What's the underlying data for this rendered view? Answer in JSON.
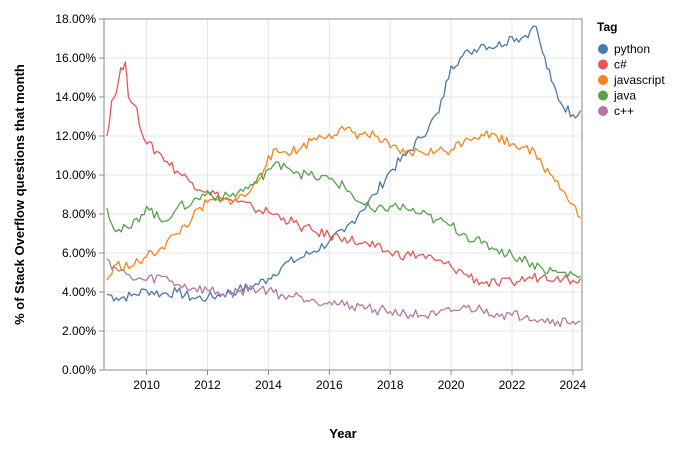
{
  "chart_data": {
    "type": "line",
    "xlabel": "Year",
    "ylabel": "% of Stack Overflow questions that month",
    "xlim": [
      2008.6,
      2024.3
    ],
    "ylim": [
      0,
      18
    ],
    "x_ticks": [
      "2010",
      "2012",
      "2014",
      "2016",
      "2018",
      "2020",
      "2022",
      "2024"
    ],
    "y_ticks": [
      "0.00%",
      "2.00%",
      "4.00%",
      "6.00%",
      "8.00%",
      "10.00%",
      "12.00%",
      "14.00%",
      "16.00%",
      "18.00%"
    ],
    "grid": true,
    "legend_title": "Tag",
    "legend_position": "top-right",
    "series": [
      {
        "name": "python",
        "color": "#4c78a8",
        "x": [
          2008.7,
          2009,
          2009.5,
          2010,
          2010.5,
          2011,
          2011.5,
          2012,
          2012.5,
          2013,
          2013.5,
          2014,
          2014.5,
          2015,
          2015.5,
          2016,
          2016.5,
          2017,
          2017.5,
          2018,
          2018.5,
          2019,
          2019.3,
          2019.6,
          2020,
          2020.3,
          2020.6,
          2021,
          2021.5,
          2022,
          2022.3,
          2022.6,
          2022.8,
          2023,
          2023.3,
          2023.6,
          2024,
          2024.25
        ],
        "y": [
          3.9,
          3.7,
          3.8,
          4.1,
          3.9,
          4.0,
          3.7,
          3.7,
          3.9,
          4.1,
          4.3,
          4.7,
          5.4,
          5.7,
          6.1,
          6.6,
          7.1,
          8.1,
          9.0,
          10.2,
          11.0,
          11.9,
          12.6,
          13.2,
          15.6,
          16.0,
          16.3,
          16.7,
          16.6,
          17.1,
          17.0,
          17.4,
          17.6,
          16.3,
          14.8,
          13.7,
          13.1,
          13.3
        ]
      },
      {
        "name": "c#",
        "color": "#e45756",
        "x": [
          2008.7,
          2008.85,
          2009,
          2009.15,
          2009.3,
          2009.4,
          2009.6,
          2010,
          2010.5,
          2011,
          2011.5,
          2012,
          2012.5,
          2013,
          2013.5,
          2014,
          2014.5,
          2015,
          2015.5,
          2016,
          2016.5,
          2017,
          2017.5,
          2018,
          2018.5,
          2019,
          2019.5,
          2020,
          2020.5,
          2021,
          2021.5,
          2022,
          2022.5,
          2023,
          2023.5,
          2024,
          2024.25
        ],
        "y": [
          12.0,
          13.8,
          14.2,
          15.5,
          15.8,
          14.0,
          13.6,
          11.6,
          11.0,
          10.2,
          9.6,
          9.2,
          8.8,
          8.6,
          8.3,
          8.1,
          7.8,
          7.4,
          7.1,
          6.9,
          6.8,
          6.5,
          6.3,
          6.0,
          5.9,
          5.9,
          5.6,
          5.3,
          4.9,
          4.5,
          4.4,
          4.5,
          4.7,
          4.8,
          4.8,
          4.6,
          4.7
        ]
      },
      {
        "name": "javascript",
        "color": "#f58518",
        "x": [
          2008.7,
          2009,
          2009.5,
          2010,
          2010.5,
          2011,
          2011.5,
          2012,
          2012.5,
          2013,
          2013.3,
          2013.7,
          2014,
          2014.5,
          2015,
          2015.5,
          2016,
          2016.5,
          2017,
          2017.5,
          2018,
          2018.5,
          2019,
          2019.5,
          2020,
          2020.5,
          2021,
          2021.5,
          2022,
          2022.5,
          2023,
          2023.5,
          2024,
          2024.25
        ],
        "y": [
          4.6,
          5.4,
          5.3,
          5.8,
          6.3,
          7.0,
          7.8,
          8.6,
          8.7,
          8.8,
          9.0,
          9.8,
          11.0,
          11.2,
          11.3,
          11.9,
          12.1,
          12.3,
          12.1,
          12.0,
          11.4,
          11.1,
          11.2,
          11.2,
          11.3,
          11.9,
          12.1,
          12.0,
          11.6,
          11.5,
          10.5,
          9.7,
          8.5,
          7.8
        ]
      },
      {
        "name": "java",
        "color": "#54a24b",
        "x": [
          2008.7,
          2009,
          2009.5,
          2010,
          2010.5,
          2011,
          2011.5,
          2012,
          2012.5,
          2013,
          2013.5,
          2014,
          2014.5,
          2015,
          2015.5,
          2016,
          2016.5,
          2017,
          2017.5,
          2018,
          2018.5,
          2019,
          2019.5,
          2020,
          2020.5,
          2021,
          2021.5,
          2022,
          2022.5,
          2023,
          2023.5,
          2024,
          2024.25
        ],
        "y": [
          8.3,
          7.1,
          7.3,
          8.4,
          7.6,
          8.3,
          8.6,
          9.1,
          8.8,
          9.1,
          9.5,
          10.3,
          10.6,
          10.1,
          9.9,
          9.8,
          9.4,
          8.6,
          8.1,
          8.4,
          8.3,
          8.0,
          7.7,
          7.4,
          6.9,
          6.5,
          6.2,
          5.9,
          5.6,
          5.2,
          5.0,
          4.9,
          4.8
        ]
      },
      {
        "name": "c++",
        "color": "#b279a2",
        "x": [
          2008.7,
          2009,
          2009.5,
          2010,
          2010.5,
          2011,
          2011.5,
          2012,
          2012.5,
          2013,
          2013.5,
          2014,
          2014.5,
          2015,
          2015.5,
          2016,
          2016.5,
          2017,
          2017.5,
          2018,
          2018.5,
          2019,
          2019.5,
          2020,
          2020.5,
          2021,
          2021.5,
          2022,
          2022.5,
          2023,
          2023.5,
          2024,
          2024.25
        ],
        "y": [
          5.7,
          5.2,
          4.7,
          4.6,
          4.8,
          4.4,
          4.2,
          4.1,
          3.9,
          4.0,
          4.2,
          4.1,
          3.8,
          3.8,
          3.6,
          3.5,
          3.3,
          3.3,
          3.1,
          3.0,
          2.9,
          2.8,
          2.8,
          3.0,
          3.2,
          3.1,
          2.9,
          2.8,
          2.8,
          2.6,
          2.5,
          2.5,
          2.5
        ]
      }
    ]
  }
}
